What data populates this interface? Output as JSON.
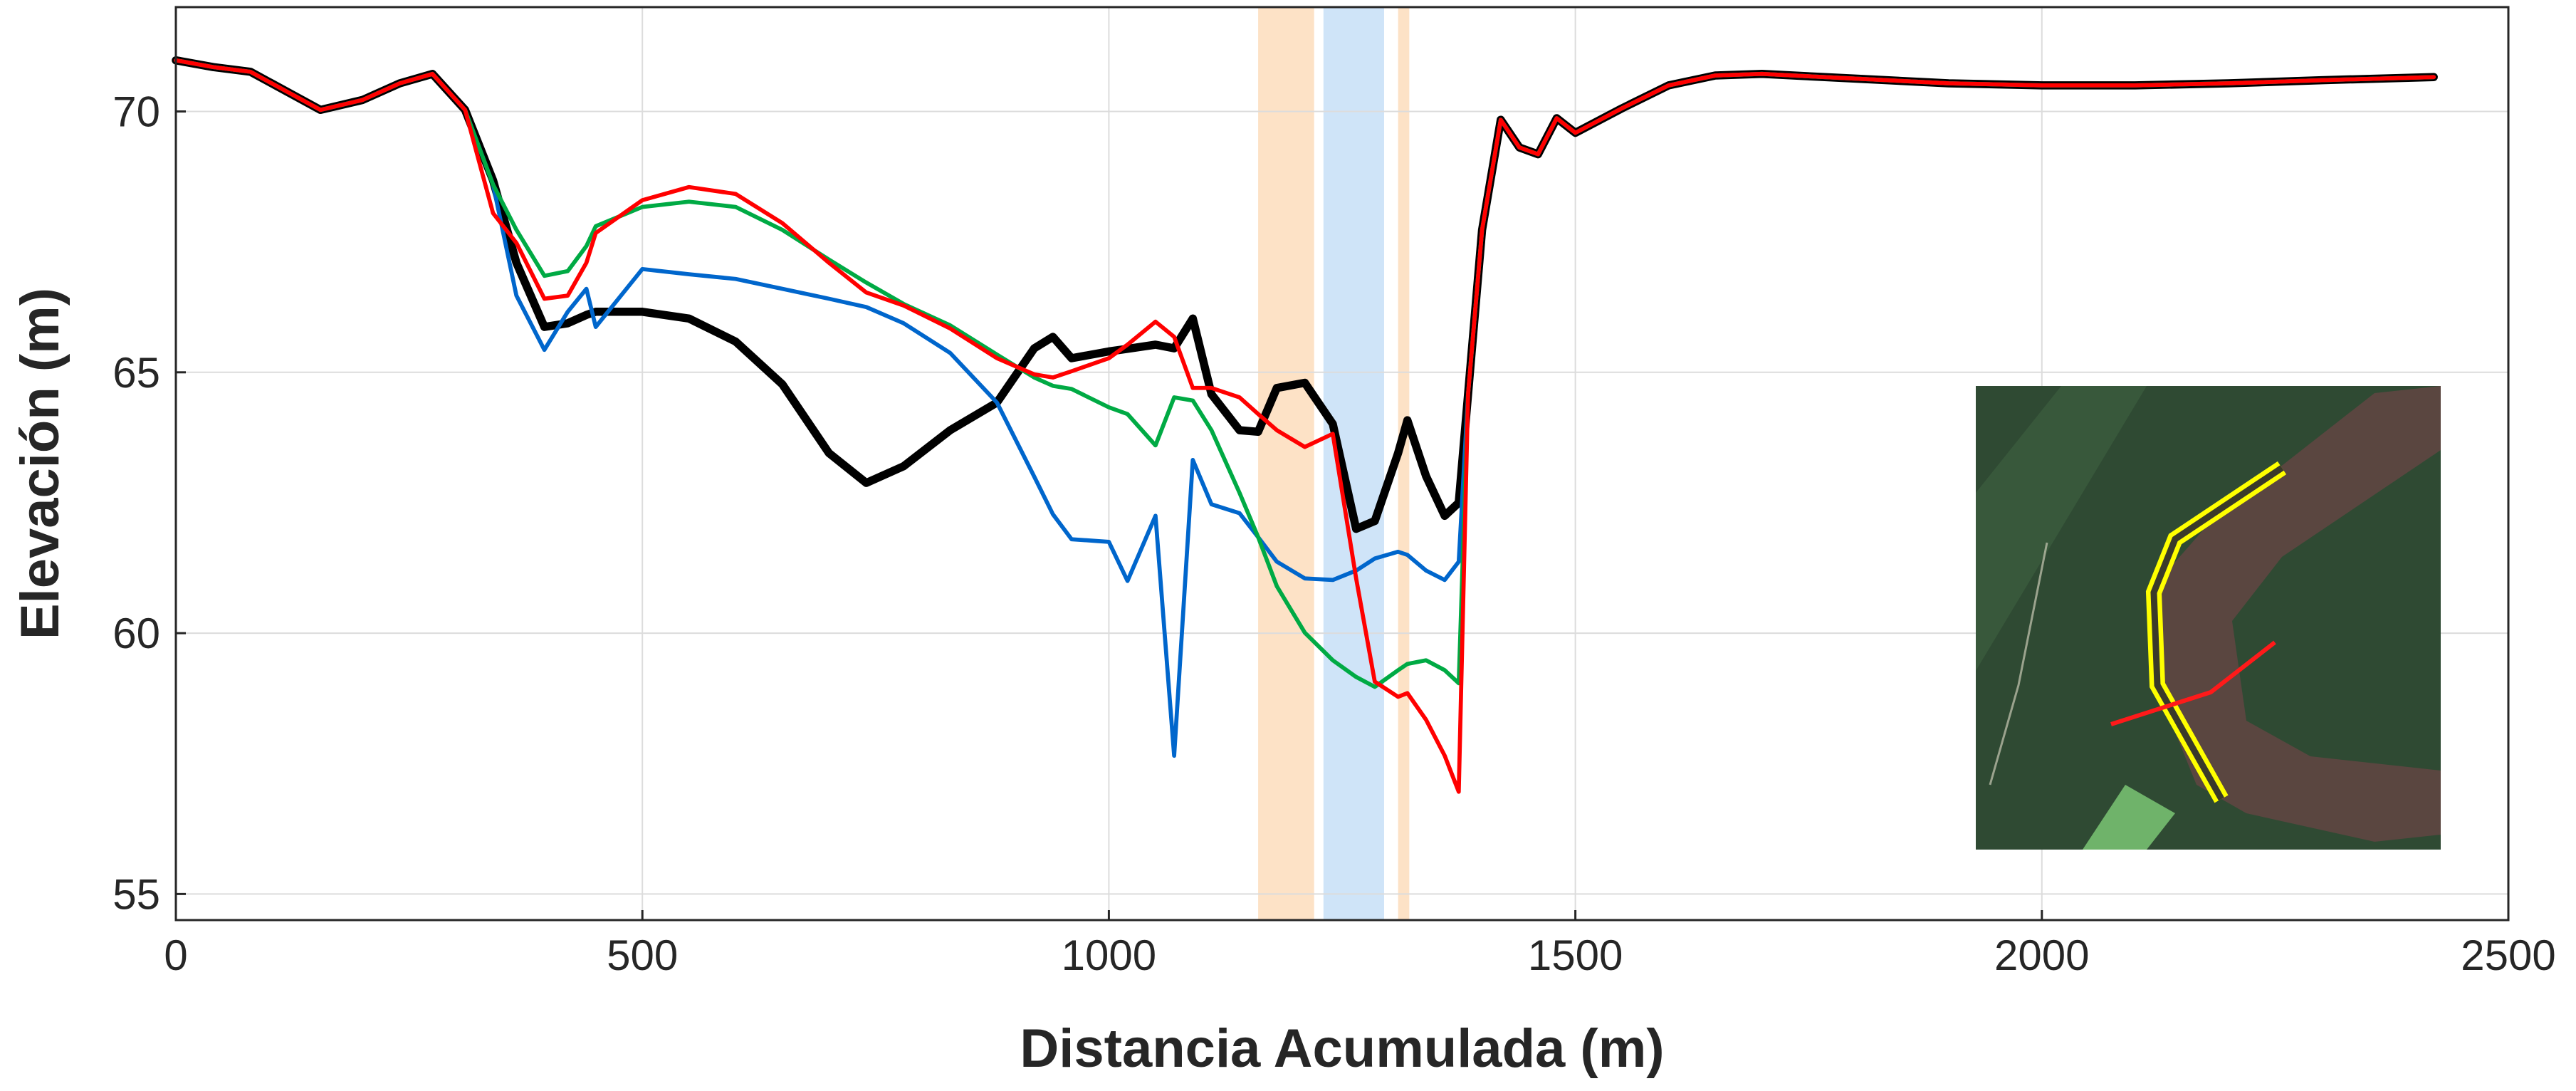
{
  "chart_data": {
    "type": "line",
    "xlabel": "Distancia Acumulada (m)",
    "ylabel": "Elevación (m)",
    "x": [
      0,
      40,
      80,
      155,
      200,
      240,
      275,
      310,
      340,
      365,
      395,
      420,
      440,
      450,
      500,
      550,
      600,
      650,
      700,
      740,
      780,
      830,
      880,
      920,
      940,
      960,
      1000,
      1020,
      1050,
      1070,
      1090,
      1110,
      1140,
      1160,
      1180,
      1210,
      1240,
      1265,
      1285,
      1310,
      1320,
      1340,
      1360,
      1375,
      1385,
      1400,
      1420,
      1440,
      1460,
      1480,
      1500,
      1550,
      1600,
      1650,
      1700,
      1800,
      1900,
      2000,
      2100,
      2200,
      2300,
      2420
    ],
    "series": [
      {
        "color": "#000000",
        "width": 5,
        "values": [
          70.98,
          70.85,
          70.76,
          70.03,
          70.22,
          70.54,
          70.72,
          70.03,
          68.68,
          67.1,
          65.87,
          65.94,
          66.1,
          66.16,
          66.16,
          66.03,
          65.59,
          64.77,
          63.45,
          62.88,
          63.2,
          63.89,
          64.42,
          65.46,
          65.68,
          65.27,
          65.4,
          65.45,
          65.53,
          65.46,
          66.03,
          64.58,
          63.89,
          63.86,
          64.7,
          64.8,
          64.01,
          62.0,
          62.15,
          63.45,
          64.08,
          63.01,
          62.25,
          62.5,
          64.58,
          67.73,
          69.84,
          69.31,
          69.18,
          69.87,
          69.59,
          70.06,
          70.5,
          70.69,
          70.72,
          70.63,
          70.54,
          70.5,
          70.5,
          70.54,
          70.6,
          70.66
        ]
      },
      {
        "color": "#0066cc",
        "width": 2.5,
        "values": [
          70.98,
          70.85,
          70.76,
          70.03,
          70.22,
          70.54,
          70.72,
          70.03,
          68.6,
          66.47,
          65.43,
          66.16,
          66.6,
          65.87,
          66.98,
          66.88,
          66.79,
          66.6,
          66.41,
          66.25,
          65.94,
          65.37,
          64.42,
          63.0,
          62.28,
          61.8,
          61.75,
          61.0,
          62.25,
          57.65,
          63.32,
          62.47,
          62.3,
          61.84,
          61.37,
          61.05,
          61.02,
          61.2,
          61.43,
          61.56,
          61.5,
          61.2,
          61.02,
          61.37,
          64.58,
          67.73,
          69.84,
          69.31,
          69.18,
          69.87,
          69.59,
          70.06,
          70.5,
          70.69,
          70.72,
          70.63,
          70.54,
          70.5,
          70.5,
          70.54,
          70.6,
          70.66
        ]
      },
      {
        "color": "#00aa44",
        "width": 2.5,
        "values": [
          70.98,
          70.85,
          70.76,
          70.03,
          70.22,
          70.54,
          70.72,
          70.03,
          68.6,
          67.73,
          66.85,
          66.94,
          67.42,
          67.8,
          68.17,
          68.27,
          68.17,
          67.73,
          67.16,
          66.72,
          66.31,
          65.9,
          65.34,
          64.9,
          64.74,
          64.68,
          64.33,
          64.2,
          63.6,
          64.52,
          64.46,
          63.89,
          62.69,
          61.84,
          60.9,
          60.01,
          59.48,
          59.16,
          58.97,
          59.29,
          59.41,
          59.48,
          59.29,
          59.04,
          64.58,
          67.73,
          69.84,
          69.31,
          69.18,
          69.87,
          69.59,
          70.06,
          70.5,
          70.69,
          70.72,
          70.63,
          70.54,
          70.5,
          70.5,
          70.54,
          70.6,
          70.66
        ]
      },
      {
        "color": "#ff0000",
        "width": 2.5,
        "values": [
          70.98,
          70.85,
          70.76,
          70.03,
          70.22,
          70.54,
          70.72,
          70.03,
          68.05,
          67.48,
          66.41,
          66.47,
          67.1,
          67.67,
          68.3,
          68.55,
          68.42,
          67.86,
          67.1,
          66.53,
          66.28,
          65.84,
          65.27,
          64.96,
          64.9,
          65.02,
          65.27,
          65.53,
          65.97,
          65.68,
          64.7,
          64.7,
          64.52,
          64.2,
          63.89,
          63.57,
          63.82,
          61.05,
          59.07,
          58.78,
          58.85,
          58.34,
          57.65,
          56.96,
          64.58,
          67.73,
          69.84,
          69.31,
          69.18,
          69.87,
          69.59,
          70.06,
          70.5,
          70.69,
          70.72,
          70.63,
          70.54,
          70.5,
          70.5,
          70.54,
          70.6,
          70.66
        ]
      }
    ],
    "spans": [
      {
        "x": [
          1160,
          1220
        ],
        "color": "#fde2c6"
      },
      {
        "x": [
          1230,
          1295
        ],
        "color": "#cfe4f8"
      },
      {
        "x": [
          1310,
          1322
        ],
        "color": "#fde2c6"
      }
    ],
    "xlim": [
      0,
      2500
    ],
    "ylim": [
      54.5,
      72
    ],
    "xticks": [
      0,
      500,
      1000,
      1500,
      2000,
      2500
    ],
    "yticks": [
      55,
      60,
      65,
      70
    ],
    "grid": true
  }
}
